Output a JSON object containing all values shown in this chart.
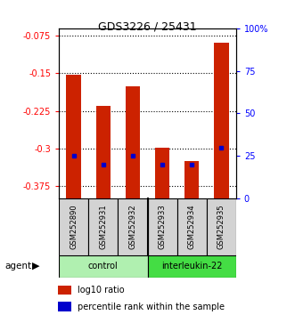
{
  "title": "GDS3226 / 25431",
  "samples": [
    "GSM252890",
    "GSM252931",
    "GSM252932",
    "GSM252933",
    "GSM252934",
    "GSM252935"
  ],
  "log10_ratio": [
    -0.152,
    -0.215,
    -0.175,
    -0.298,
    -0.325,
    -0.088
  ],
  "percentile_rank": [
    25,
    20,
    25,
    20,
    20,
    30
  ],
  "groups": [
    {
      "label": "control",
      "indices": [
        0,
        1,
        2
      ],
      "color": "#b0f0b0"
    },
    {
      "label": "interleukin-22",
      "indices": [
        3,
        4,
        5
      ],
      "color": "#44dd44"
    }
  ],
  "ylim_left": [
    -0.4,
    -0.06
  ],
  "ylim_right": [
    0,
    100
  ],
  "left_ticks": [
    -0.375,
    -0.3,
    -0.225,
    -0.15,
    -0.075
  ],
  "right_ticks": [
    0,
    25,
    50,
    75,
    100
  ],
  "right_tick_labels": [
    "0",
    "25",
    "50",
    "75",
    "100%"
  ],
  "bar_color": "#cc2200",
  "percentile_color": "#0000cc",
  "bar_width": 0.5
}
